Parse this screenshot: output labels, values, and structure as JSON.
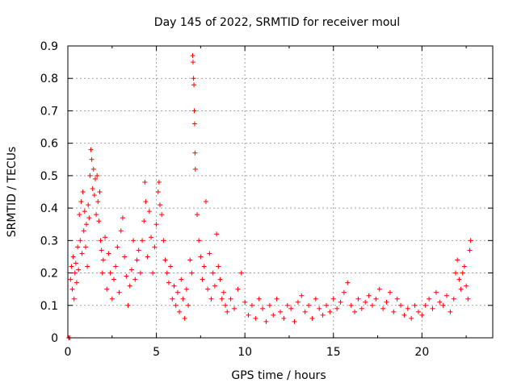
{
  "chart_data": {
    "type": "scatter",
    "title": "Day 145 of 2022, SRMTID for receiver moul",
    "xlabel": "GPS time / hours",
    "ylabel": "SRMTID / TECUs",
    "xlim": [
      0,
      24
    ],
    "ylim": [
      0,
      0.9
    ],
    "xticks": [
      0,
      5,
      10,
      15,
      20
    ],
    "xtick_labels": [
      "0",
      "5",
      "10",
      "15",
      "20"
    ],
    "yticks": [
      0,
      0.1,
      0.2,
      0.3,
      0.4,
      0.5,
      0.6,
      0.7,
      0.8,
      0.9
    ],
    "ytick_labels": [
      "0",
      "0.1",
      "0.2",
      "0.3",
      "0.4",
      "0.5",
      "0.6",
      "0.7",
      "0.8",
      "0.9"
    ],
    "grid": true,
    "marker": "+",
    "color": "#ff0000",
    "series": [
      {
        "name": "SRMTID",
        "points": [
          [
            0.05,
            0.0
          ],
          [
            0.1,
            0.0
          ],
          [
            0.15,
            0.18
          ],
          [
            0.2,
            0.22
          ],
          [
            0.25,
            0.15
          ],
          [
            0.3,
            0.25
          ],
          [
            0.35,
            0.12
          ],
          [
            0.4,
            0.2
          ],
          [
            0.45,
            0.23
          ],
          [
            0.5,
            0.17
          ],
          [
            0.55,
            0.28
          ],
          [
            0.6,
            0.21
          ],
          [
            0.65,
            0.38
          ],
          [
            0.7,
            0.3
          ],
          [
            0.75,
            0.42
          ],
          [
            0.8,
            0.26
          ],
          [
            0.85,
            0.45
          ],
          [
            0.9,
            0.33
          ],
          [
            0.95,
            0.39
          ],
          [
            1.0,
            0.28
          ],
          [
            1.05,
            0.35
          ],
          [
            1.1,
            0.22
          ],
          [
            1.15,
            0.41
          ],
          [
            1.2,
            0.37
          ],
          [
            1.25,
            0.5
          ],
          [
            1.3,
            0.58
          ],
          [
            1.35,
            0.55
          ],
          [
            1.4,
            0.46
          ],
          [
            1.45,
            0.52
          ],
          [
            1.5,
            0.44
          ],
          [
            1.55,
            0.49
          ],
          [
            1.6,
            0.38
          ],
          [
            1.65,
            0.5
          ],
          [
            1.7,
            0.42
          ],
          [
            1.75,
            0.36
          ],
          [
            1.8,
            0.45
          ],
          [
            1.85,
            0.3
          ],
          [
            1.9,
            0.27
          ],
          [
            1.95,
            0.2
          ],
          [
            2.0,
            0.24
          ],
          [
            2.1,
            0.31
          ],
          [
            2.2,
            0.15
          ],
          [
            2.3,
            0.26
          ],
          [
            2.4,
            0.2
          ],
          [
            2.5,
            0.12
          ],
          [
            2.6,
            0.18
          ],
          [
            2.7,
            0.22
          ],
          [
            2.8,
            0.28
          ],
          [
            2.9,
            0.14
          ],
          [
            3.0,
            0.33
          ],
          [
            3.1,
            0.37
          ],
          [
            3.2,
            0.25
          ],
          [
            3.3,
            0.19
          ],
          [
            3.4,
            0.1
          ],
          [
            3.5,
            0.16
          ],
          [
            3.6,
            0.21
          ],
          [
            3.7,
            0.3
          ],
          [
            3.8,
            0.18
          ],
          [
            3.9,
            0.24
          ],
          [
            4.0,
            0.27
          ],
          [
            4.1,
            0.2
          ],
          [
            4.2,
            0.3
          ],
          [
            4.3,
            0.36
          ],
          [
            4.35,
            0.48
          ],
          [
            4.4,
            0.42
          ],
          [
            4.5,
            0.25
          ],
          [
            4.6,
            0.39
          ],
          [
            4.7,
            0.31
          ],
          [
            4.8,
            0.2
          ],
          [
            4.9,
            0.28
          ],
          [
            5.0,
            0.35
          ],
          [
            5.1,
            0.45
          ],
          [
            5.15,
            0.48
          ],
          [
            5.2,
            0.41
          ],
          [
            5.3,
            0.38
          ],
          [
            5.4,
            0.3
          ],
          [
            5.5,
            0.24
          ],
          [
            5.6,
            0.2
          ],
          [
            5.7,
            0.17
          ],
          [
            5.8,
            0.22
          ],
          [
            5.9,
            0.12
          ],
          [
            6.0,
            0.16
          ],
          [
            6.1,
            0.1
          ],
          [
            6.2,
            0.14
          ],
          [
            6.3,
            0.08
          ],
          [
            6.4,
            0.18
          ],
          [
            6.5,
            0.12
          ],
          [
            6.6,
            0.06
          ],
          [
            6.7,
            0.15
          ],
          [
            6.8,
            0.1
          ],
          [
            6.9,
            0.24
          ],
          [
            7.0,
            0.2
          ],
          [
            7.05,
            0.87
          ],
          [
            7.07,
            0.85
          ],
          [
            7.1,
            0.8
          ],
          [
            7.12,
            0.78
          ],
          [
            7.14,
            0.7
          ],
          [
            7.16,
            0.66
          ],
          [
            7.18,
            0.57
          ],
          [
            7.2,
            0.52
          ],
          [
            7.3,
            0.38
          ],
          [
            7.4,
            0.3
          ],
          [
            7.5,
            0.25
          ],
          [
            7.6,
            0.18
          ],
          [
            7.7,
            0.22
          ],
          [
            7.8,
            0.42
          ],
          [
            7.9,
            0.15
          ],
          [
            8.0,
            0.26
          ],
          [
            8.1,
            0.12
          ],
          [
            8.2,
            0.2
          ],
          [
            8.3,
            0.16
          ],
          [
            8.4,
            0.32
          ],
          [
            8.5,
            0.22
          ],
          [
            8.6,
            0.18
          ],
          [
            8.7,
            0.12
          ],
          [
            8.8,
            0.14
          ],
          [
            8.9,
            0.1
          ],
          [
            9.0,
            0.08
          ],
          [
            9.2,
            0.12
          ],
          [
            9.4,
            0.09
          ],
          [
            9.6,
            0.15
          ],
          [
            9.8,
            0.2
          ],
          [
            10.0,
            0.11
          ],
          [
            10.2,
            0.07
          ],
          [
            10.4,
            0.1
          ],
          [
            10.6,
            0.06
          ],
          [
            10.8,
            0.12
          ],
          [
            11.0,
            0.09
          ],
          [
            11.2,
            0.05
          ],
          [
            11.4,
            0.1
          ],
          [
            11.6,
            0.07
          ],
          [
            11.8,
            0.12
          ],
          [
            12.0,
            0.08
          ],
          [
            12.2,
            0.06
          ],
          [
            12.4,
            0.1
          ],
          [
            12.6,
            0.09
          ],
          [
            12.8,
            0.05
          ],
          [
            13.0,
            0.11
          ],
          [
            13.2,
            0.13
          ],
          [
            13.4,
            0.08
          ],
          [
            13.6,
            0.1
          ],
          [
            13.8,
            0.06
          ],
          [
            14.0,
            0.12
          ],
          [
            14.2,
            0.09
          ],
          [
            14.4,
            0.07
          ],
          [
            14.6,
            0.1
          ],
          [
            14.8,
            0.08
          ],
          [
            15.0,
            0.12
          ],
          [
            15.2,
            0.09
          ],
          [
            15.4,
            0.11
          ],
          [
            15.6,
            0.14
          ],
          [
            15.8,
            0.17
          ],
          [
            16.0,
            0.1
          ],
          [
            16.2,
            0.08
          ],
          [
            16.4,
            0.12
          ],
          [
            16.6,
            0.09
          ],
          [
            16.8,
            0.11
          ],
          [
            17.0,
            0.13
          ],
          [
            17.2,
            0.1
          ],
          [
            17.4,
            0.12
          ],
          [
            17.6,
            0.15
          ],
          [
            17.8,
            0.09
          ],
          [
            18.0,
            0.11
          ],
          [
            18.2,
            0.14
          ],
          [
            18.4,
            0.08
          ],
          [
            18.6,
            0.12
          ],
          [
            18.8,
            0.1
          ],
          [
            19.0,
            0.07
          ],
          [
            19.2,
            0.09
          ],
          [
            19.4,
            0.06
          ],
          [
            19.6,
            0.1
          ],
          [
            19.8,
            0.08
          ],
          [
            20.0,
            0.07
          ],
          [
            20.2,
            0.1
          ],
          [
            20.4,
            0.12
          ],
          [
            20.6,
            0.09
          ],
          [
            20.8,
            0.14
          ],
          [
            21.0,
            0.11
          ],
          [
            21.2,
            0.1
          ],
          [
            21.4,
            0.13
          ],
          [
            21.6,
            0.08
          ],
          [
            21.8,
            0.12
          ],
          [
            21.9,
            0.2
          ],
          [
            22.0,
            0.24
          ],
          [
            22.1,
            0.18
          ],
          [
            22.2,
            0.15
          ],
          [
            22.3,
            0.2
          ],
          [
            22.4,
            0.22
          ],
          [
            22.5,
            0.16
          ],
          [
            22.6,
            0.12
          ],
          [
            22.7,
            0.27
          ],
          [
            22.75,
            0.3
          ]
        ]
      }
    ]
  }
}
